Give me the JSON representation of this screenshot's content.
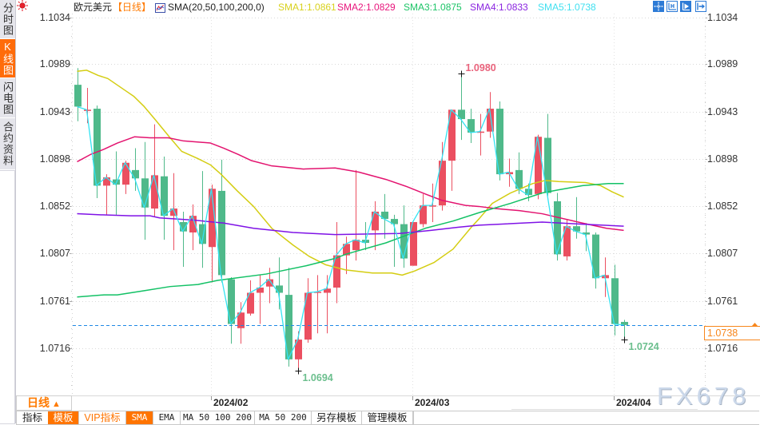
{
  "sidebar": {
    "tabs": [
      {
        "label": "分时图",
        "active": false
      },
      {
        "label": "K线图",
        "active": true
      },
      {
        "label": "闪电图",
        "active": false
      },
      {
        "label": "合约资料",
        "active": false
      }
    ]
  },
  "header": {
    "symbol": "欧元美元",
    "period": "【日线】",
    "indicator_name": "SMA(20,50,100,200,0)",
    "indicator_values": [
      {
        "label": "SMA1:1.0861",
        "color": "#d8d11c"
      },
      {
        "label": "SMA2:1.0829",
        "color": "#e8157c"
      },
      {
        "label": "SMA3:1.0875",
        "color": "#1bc466"
      },
      {
        "label": "SMA4:1.0833",
        "color": "#8a24e0"
      },
      {
        "label": "SMA5:1.0738",
        "color": "#3fe0f0"
      }
    ]
  },
  "top_right_tools": [
    "crosshair",
    "range-select",
    "play-forward",
    "jump-to-latest"
  ],
  "y_axis": {
    "labels": [
      "1.1034",
      "1.0989",
      "1.0943",
      "1.0898",
      "1.0852",
      "1.0807",
      "1.0761",
      "1.0716"
    ]
  },
  "x_axis": {
    "labels": [
      {
        "text": "2024/02",
        "index": 14
      },
      {
        "text": "2024/03",
        "index": 35
      },
      {
        "text": "2024/04",
        "index": 56
      }
    ]
  },
  "current_price": {
    "label": "1.0738",
    "value": 1.0738,
    "color": "#f7861c"
  },
  "annotations": [
    {
      "text": "1.0980",
      "kind": "high",
      "index": 40,
      "price": 1.098,
      "color": "#e9637c"
    },
    {
      "text": "1.0694",
      "kind": "low",
      "index": 23,
      "price": 1.0694,
      "color": "#6cbf8e"
    },
    {
      "text": "1.0724",
      "kind": "low",
      "index": 57,
      "price": 1.0724,
      "color": "#6cbf8e"
    }
  ],
  "period_selector": {
    "label": "日线",
    "arrow": "▲"
  },
  "bottom_toolbar": {
    "buttons": [
      {
        "label": "指标",
        "style": "plain"
      },
      {
        "label": "模板",
        "style": "active"
      },
      {
        "label": "VIP指标",
        "style": "vip"
      },
      {
        "label": "SMA",
        "style": "active"
      },
      {
        "label": "EMA",
        "style": "plain"
      },
      {
        "label": "MA 50 100 200",
        "style": "plain"
      },
      {
        "label": "MA 50 200",
        "style": "plain"
      },
      {
        "label": "另存模板",
        "style": "plain"
      },
      {
        "label": "管理模板",
        "style": "plain"
      }
    ]
  },
  "watermark": "FX678",
  "colors": {
    "up": "#eb4f60",
    "down": "#4fb98a",
    "accent": "#ff7400",
    "current_line": "#1e88e5",
    "grid": "#d9d9d9"
  },
  "chart_data": {
    "type": "candlestick",
    "title": "欧元美元【日线】",
    "xlabel": "",
    "ylabel": "",
    "ylim": [
      1.0716,
      1.1034
    ],
    "grid": true,
    "legend_position": "top",
    "x_tick_labels": [
      {
        "text": "2024/02",
        "index": 14
      },
      {
        "text": "2024/03",
        "index": 35
      },
      {
        "text": "2024/04",
        "index": 56
      }
    ],
    "y_tick_labels": [
      "1.1034",
      "1.0989",
      "1.0943",
      "1.0898",
      "1.0852",
      "1.0807",
      "1.0761",
      "1.0716"
    ],
    "legend": [
      "SMA(20,50,100,200,0)",
      "SMA1:1.0861",
      "SMA2:1.0829",
      "SMA3:1.0875",
      "SMA4:1.0833",
      "SMA5:1.0738"
    ],
    "ohlc": {
      "open": [
        1.0969,
        1.0944,
        1.0946,
        1.0872,
        1.0878,
        1.0873,
        1.0887,
        1.0879,
        1.085,
        1.0881,
        1.0843,
        1.0837,
        1.0827,
        1.0835,
        1.0813,
        1.0867,
        1.0782,
        1.0735,
        1.0749,
        1.0769,
        1.0775,
        1.0776,
        1.0767,
        1.0705,
        1.0724,
        1.0769,
        1.0769,
        1.0774,
        1.0805,
        1.081,
        1.082,
        1.0829,
        1.0847,
        1.084,
        1.0835,
        1.0795,
        1.0835,
        1.0852,
        1.0853,
        1.0896,
        1.0945,
        1.0936,
        1.0923,
        1.0924,
        1.0946,
        1.0883,
        1.0887,
        1.0869,
        1.0864,
        1.0918,
        1.0857,
        1.0804,
        1.0833,
        1.0827,
        1.0825,
        1.0783,
        1.0783,
        1.0741
      ],
      "high": [
        1.0985,
        1.0966,
        1.0949,
        1.0883,
        1.0905,
        1.0896,
        1.0908,
        1.0914,
        1.0931,
        1.09,
        1.0884,
        1.0847,
        1.0854,
        1.0886,
        1.0873,
        1.0897,
        1.0784,
        1.076,
        1.0781,
        1.0786,
        1.0793,
        1.0803,
        1.0793,
        1.0732,
        1.0783,
        1.0786,
        1.0786,
        1.0837,
        1.0823,
        1.0887,
        1.0837,
        1.0857,
        1.0864,
        1.0844,
        1.0853,
        1.0837,
        1.0864,
        1.0874,
        1.0914,
        1.0945,
        1.098,
        1.0946,
        1.0941,
        1.0962,
        1.0953,
        1.0898,
        1.0904,
        1.0874,
        1.0921,
        1.0941,
        1.0865,
        1.084,
        1.0861,
        1.0836,
        1.0827,
        1.0803,
        1.0796,
        1.0743
      ],
      "low": [
        1.0934,
        1.0932,
        1.086,
        1.0844,
        1.0844,
        1.0864,
        1.0867,
        1.082,
        1.0842,
        1.082,
        1.081,
        1.0794,
        1.081,
        1.0793,
        1.0779,
        1.0779,
        1.072,
        1.072,
        1.0747,
        1.0739,
        1.0759,
        1.0753,
        1.0698,
        1.0694,
        1.0721,
        1.073,
        1.073,
        1.0759,
        1.0787,
        1.08,
        1.081,
        1.081,
        1.0821,
        1.0794,
        1.0793,
        1.0795,
        1.0832,
        1.0837,
        1.0848,
        1.0867,
        1.0916,
        1.0913,
        1.0901,
        1.0918,
        1.0877,
        1.0871,
        1.0864,
        1.0857,
        1.0859,
        1.0862,
        1.08,
        1.08,
        1.0821,
        1.0809,
        1.0773,
        1.0765,
        1.0728,
        1.0724
      ],
      "close": [
        1.0948,
        1.0945,
        1.0872,
        1.088,
        1.0873,
        1.0894,
        1.0879,
        1.0851,
        1.0882,
        1.0843,
        1.085,
        1.0828,
        1.0843,
        1.0816,
        1.0869,
        1.0786,
        1.0739,
        1.075,
        1.0769,
        1.0774,
        1.0782,
        1.0769,
        1.0705,
        1.0724,
        1.0769,
        1.077,
        1.0773,
        1.0805,
        1.0816,
        1.082,
        1.0817,
        1.0847,
        1.084,
        1.0835,
        1.0802,
        1.0837,
        1.0853,
        1.0853,
        1.0896,
        1.0945,
        1.0936,
        1.0923,
        1.0924,
        1.0946,
        1.0883,
        1.0885,
        1.0869,
        1.0863,
        1.0919,
        1.0865,
        1.0806,
        1.0833,
        1.0828,
        1.0825,
        1.0783,
        1.0786,
        1.0739,
        1.0738
      ]
    },
    "series": [
      {
        "name": "SMA1",
        "period": 20,
        "color": "#d4cd12",
        "last": 1.0861,
        "points": [
          [
            0,
            1.0982
          ],
          [
            1,
            1.0983
          ],
          [
            2.2,
            1.0978
          ],
          [
            3.2,
            1.0975
          ],
          [
            5.1,
            1.0963
          ],
          [
            5.9,
            1.0958
          ],
          [
            7,
            1.0948
          ],
          [
            8.1,
            1.0936
          ],
          [
            9.7,
            1.0918
          ],
          [
            10.9,
            1.0905
          ],
          [
            12.6,
            1.0898
          ],
          [
            13.9,
            1.0892
          ],
          [
            15,
            1.0883
          ],
          [
            16.7,
            1.0867
          ],
          [
            18.4,
            1.0852
          ],
          [
            20.3,
            1.0831
          ],
          [
            22.5,
            1.0815
          ],
          [
            24.2,
            1.0804
          ],
          [
            25.9,
            1.0796
          ],
          [
            28,
            1.0791
          ],
          [
            30.8,
            1.0788
          ],
          [
            32.8,
            1.0788
          ],
          [
            33.9,
            1.0786
          ],
          [
            35.2,
            1.079
          ],
          [
            37.2,
            1.0798
          ],
          [
            39.2,
            1.0811
          ],
          [
            41.1,
            1.0832
          ],
          [
            41.9,
            1.084
          ],
          [
            43.3,
            1.0855
          ],
          [
            45.2,
            1.0865
          ],
          [
            47.5,
            1.0874
          ],
          [
            48.8,
            1.0877
          ],
          [
            50.2,
            1.0876
          ],
          [
            53,
            1.0875
          ],
          [
            54.6,
            1.0872
          ],
          [
            55.8,
            1.0866
          ],
          [
            57,
            1.0861
          ]
        ]
      },
      {
        "name": "SMA2",
        "period": 50,
        "color": "#e3136f",
        "last": 1.0829,
        "points": [
          [
            0,
            1.0895
          ],
          [
            1.4,
            1.0902
          ],
          [
            2.8,
            1.0907
          ],
          [
            4.2,
            1.0913
          ],
          [
            6,
            1.0919
          ],
          [
            7.6,
            1.0918
          ],
          [
            9.5,
            1.0918
          ],
          [
            11.1,
            1.0915
          ],
          [
            13.9,
            1.0913
          ],
          [
            15.3,
            1.0908
          ],
          [
            16.8,
            1.0902
          ],
          [
            18.2,
            1.0896
          ],
          [
            20.3,
            1.0891
          ],
          [
            23.6,
            1.0888
          ],
          [
            26.9,
            1.0889
          ],
          [
            29.4,
            1.0885
          ],
          [
            32.2,
            1.0878
          ],
          [
            34.4,
            1.0871
          ],
          [
            36.3,
            1.0864
          ],
          [
            38,
            1.0858
          ],
          [
            40.5,
            1.0853
          ],
          [
            41.9,
            1.0852
          ],
          [
            43.6,
            1.085
          ],
          [
            46.1,
            1.0848
          ],
          [
            48.5,
            1.0845
          ],
          [
            52.7,
            1.0836
          ],
          [
            55.2,
            1.0831
          ],
          [
            57,
            1.0829
          ]
        ]
      },
      {
        "name": "SMA3",
        "period": 100,
        "color": "#12c165",
        "last": 1.0875,
        "points": [
          [
            0,
            1.0765
          ],
          [
            2.8,
            1.0767
          ],
          [
            4.2,
            1.0767
          ],
          [
            7,
            1.0771
          ],
          [
            9.7,
            1.0775
          ],
          [
            12.6,
            1.0777
          ],
          [
            14.7,
            1.0781
          ],
          [
            19.7,
            1.0787
          ],
          [
            23.9,
            1.0795
          ],
          [
            26.9,
            1.0802
          ],
          [
            28,
            1.0806
          ],
          [
            32.2,
            1.0817
          ],
          [
            36.3,
            1.0831
          ],
          [
            39.2,
            1.0838
          ],
          [
            41.9,
            1.0846
          ],
          [
            45.2,
            1.0855
          ],
          [
            48.5,
            1.0865
          ],
          [
            50.2,
            1.0868
          ],
          [
            52.7,
            1.0872
          ],
          [
            55.4,
            1.0874
          ],
          [
            57,
            1.0874
          ]
        ]
      },
      {
        "name": "SMA4",
        "period": 200,
        "color": "#7f12e6",
        "last": 1.0833,
        "points": [
          [
            0,
            1.0845
          ],
          [
            2.4,
            1.0844
          ],
          [
            5.6,
            1.0843
          ],
          [
            7.6,
            1.0843
          ],
          [
            8.6,
            1.0841
          ],
          [
            12,
            1.0839
          ],
          [
            14.2,
            1.0837
          ],
          [
            15.3,
            1.0836
          ],
          [
            18.4,
            1.0831
          ],
          [
            22.5,
            1.0827
          ],
          [
            26.9,
            1.0825
          ],
          [
            33.6,
            1.0826
          ],
          [
            36.9,
            1.0829
          ],
          [
            39.7,
            1.0832
          ],
          [
            41.9,
            1.0834
          ],
          [
            48.5,
            1.0837
          ],
          [
            52.7,
            1.0835
          ],
          [
            57,
            1.0833
          ]
        ]
      },
      {
        "name": "SMA5",
        "period": 0,
        "color": "#33e3f2",
        "last": 1.0738,
        "source": "close"
      }
    ],
    "markers": [
      {
        "label": "1.0980",
        "kind": "high",
        "index": 40
      },
      {
        "label": "1.0694",
        "kind": "low",
        "index": 23
      },
      {
        "label": "1.0724",
        "kind": "low",
        "index": 57
      }
    ],
    "current_price": 1.0738
  }
}
